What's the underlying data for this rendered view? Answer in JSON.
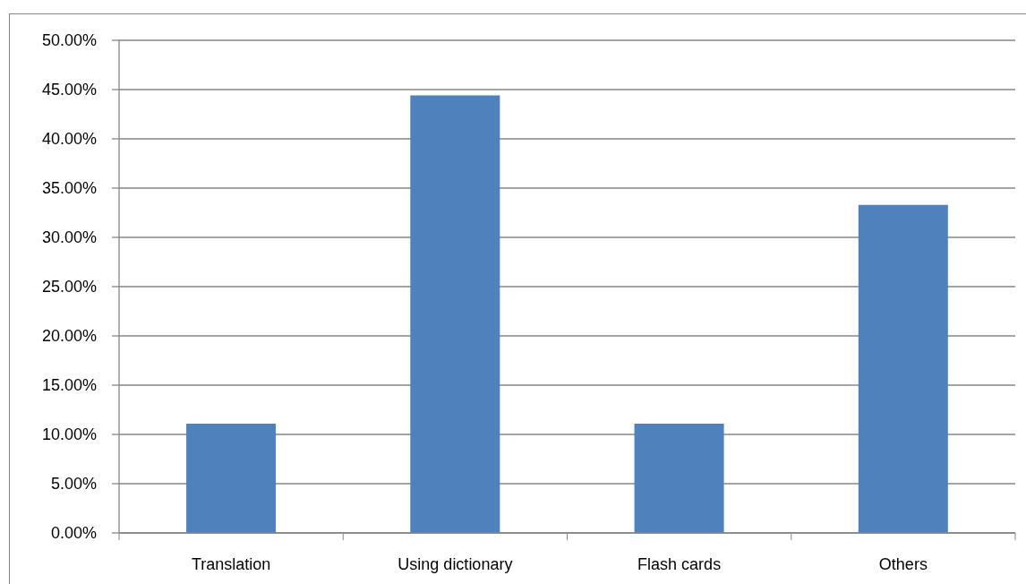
{
  "chart_data": {
    "type": "bar",
    "categories": [
      "Translation",
      "Using dictionary",
      "Flash cards",
      "Others"
    ],
    "values": [
      11.1,
      44.4,
      11.1,
      33.3
    ],
    "color": "#4f81bd",
    "ylim": [
      0,
      50
    ],
    "yticks": [
      {
        "value": 0,
        "label": "0.00%"
      },
      {
        "value": 5,
        "label": "5.00%"
      },
      {
        "value": 10,
        "label": "10.00%"
      },
      {
        "value": 15,
        "label": "15.00%"
      },
      {
        "value": 20,
        "label": "20.00%"
      },
      {
        "value": 25,
        "label": "25.00%"
      },
      {
        "value": 30,
        "label": "30.00%"
      },
      {
        "value": 35,
        "label": "35.00%"
      },
      {
        "value": 40,
        "label": "40.00%"
      },
      {
        "value": 45,
        "label": "45.00%"
      },
      {
        "value": 50,
        "label": "50.00%"
      }
    ],
    "grid": "y"
  }
}
